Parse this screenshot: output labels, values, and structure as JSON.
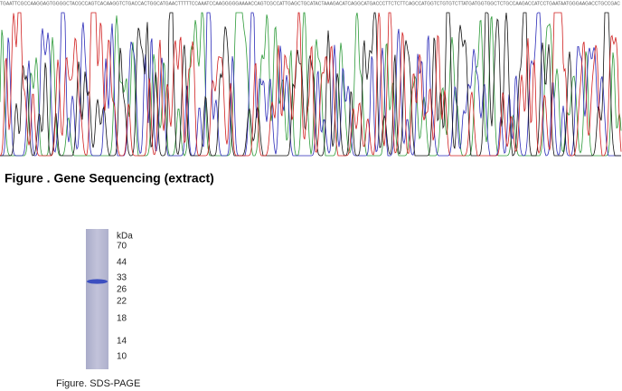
{
  "sequencing": {
    "sequence": "TGAATTCGCCAAGGAGTGGGGCTACGCCAGTCACAAGGTCTGACCACTGGCATGAACTTTTTCCAAATCCAAGGGGGAAAACCAGTCGCCATTGAGCTGCATACTAAAGACATCAGGCATGACCCTTCTCTTCAGCCATGGTCTGTGTCTTATGATGGTGGCTCTGCCAAGACCATCCTGAATAATGGGAAGACCTGCCGAC",
    "caption": "Figure . Gene Sequencing (extract)"
  },
  "gel": {
    "unit": "kDa",
    "markers": [
      70,
      44,
      33,
      26,
      22,
      18,
      14,
      10
    ],
    "caption": "Figure. SDS-PAGE"
  }
}
